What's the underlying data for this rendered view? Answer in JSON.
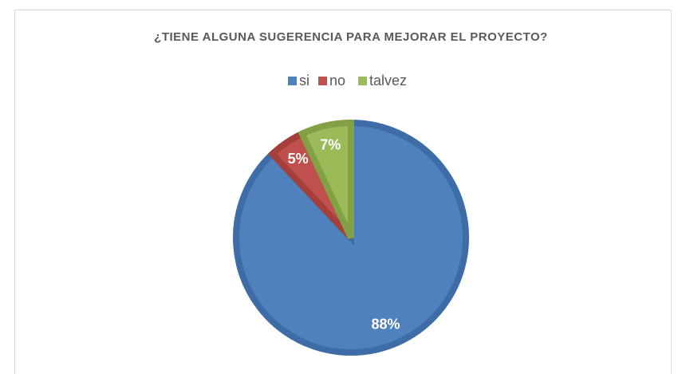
{
  "chart_data": {
    "type": "pie",
    "title": "¿TIENE ALGUNA SUGERENCIA PARA MEJORAR EL PROYECTO?",
    "categories": [
      "si",
      "no",
      "talvez"
    ],
    "values": [
      88,
      5,
      7
    ],
    "value_labels": [
      "88%",
      "5%",
      "7%"
    ],
    "colors": [
      "#4f81bd",
      "#c0504d",
      "#9bbb59"
    ],
    "strokes": [
      "#3d6ca6",
      "#a43f3c",
      "#82a044"
    ],
    "legend": "top"
  }
}
